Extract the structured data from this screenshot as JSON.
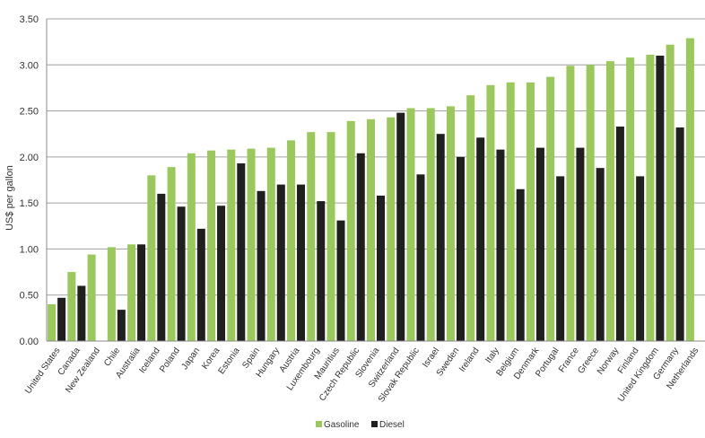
{
  "chart_data": {
    "type": "bar",
    "title": "",
    "xlabel": "",
    "ylabel": "US$ per gallon",
    "ylim": [
      0,
      3.5
    ],
    "yticks": [
      "0.00",
      "0.50",
      "1.00",
      "1.50",
      "2.00",
      "2.50",
      "3.00",
      "3.50"
    ],
    "grid": true,
    "legend_position": "bottom",
    "colors": {
      "Gasoline": "#9bc85b",
      "Diesel": "#1f1f1f"
    },
    "categories": [
      "United States",
      "Canada",
      "New Zealand",
      "Chile",
      "Australia",
      "Iceland",
      "Poland",
      "Japan",
      "Korea",
      "Estonia",
      "Spain",
      "Hungary",
      "Austria",
      "Luxembourg",
      "Mauritius",
      "Czech Republic",
      "Slovenia",
      "Switzerland",
      "Slovak Republic",
      "Israel",
      "Sweden",
      "Ireland",
      "Italy",
      "Belgium",
      "Denmark",
      "Portugal",
      "France",
      "Greece",
      "Norway",
      "Finland",
      "United Kingdom",
      "Germany",
      "Netherlands"
    ],
    "series": [
      {
        "name": "Gasoline",
        "values": [
          0.4,
          0.75,
          0.94,
          1.02,
          1.05,
          1.8,
          1.89,
          2.04,
          2.07,
          2.08,
          2.09,
          2.1,
          2.18,
          2.27,
          2.27,
          2.39,
          2.41,
          2.43,
          2.53,
          2.53,
          2.55,
          2.67,
          2.78,
          2.81,
          2.81,
          2.87,
          2.99,
          3.0,
          3.04,
          3.08,
          3.11,
          3.22,
          3.29
        ]
      },
      {
        "name": "Diesel",
        "values": [
          0.47,
          0.6,
          null,
          0.34,
          1.05,
          1.6,
          1.46,
          1.22,
          1.47,
          1.93,
          1.63,
          1.7,
          1.7,
          1.52,
          1.31,
          2.04,
          1.58,
          2.48,
          1.81,
          2.25,
          2.0,
          2.21,
          2.08,
          1.65,
          2.1,
          1.79,
          2.1,
          1.88,
          2.33,
          1.79,
          3.1,
          2.32,
          null
        ]
      }
    ]
  }
}
